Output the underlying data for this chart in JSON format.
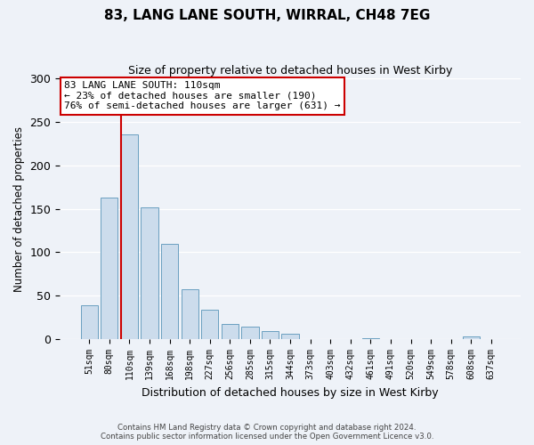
{
  "title": "83, LANG LANE SOUTH, WIRRAL, CH48 7EG",
  "subtitle": "Size of property relative to detached houses in West Kirby",
  "xlabel": "Distribution of detached houses by size in West Kirby",
  "ylabel": "Number of detached properties",
  "bar_labels": [
    "51sqm",
    "80sqm",
    "110sqm",
    "139sqm",
    "168sqm",
    "198sqm",
    "227sqm",
    "256sqm",
    "285sqm",
    "315sqm",
    "344sqm",
    "373sqm",
    "403sqm",
    "432sqm",
    "461sqm",
    "491sqm",
    "520sqm",
    "549sqm",
    "578sqm",
    "608sqm",
    "637sqm"
  ],
  "bar_values": [
    39,
    163,
    236,
    152,
    110,
    57,
    34,
    18,
    15,
    9,
    6,
    0,
    0,
    0,
    1,
    0,
    0,
    0,
    0,
    3,
    0
  ],
  "bar_color": "#ccdcec",
  "bar_edge_color": "#6a9fc0",
  "highlight_index": 2,
  "highlight_line_color": "#cc0000",
  "ylim": [
    0,
    300
  ],
  "yticks": [
    0,
    50,
    100,
    150,
    200,
    250,
    300
  ],
  "annotation_title": "83 LANG LANE SOUTH: 110sqm",
  "annotation_line1": "← 23% of detached houses are smaller (190)",
  "annotation_line2": "76% of semi-detached houses are larger (631) →",
  "annotation_box_color": "#ffffff",
  "annotation_box_edge": "#cc0000",
  "footer_line1": "Contains HM Land Registry data © Crown copyright and database right 2024.",
  "footer_line2": "Contains public sector information licensed under the Open Government Licence v3.0.",
  "background_color": "#eef2f8",
  "plot_bg_color": "#eef2f8",
  "grid_color": "#ffffff"
}
